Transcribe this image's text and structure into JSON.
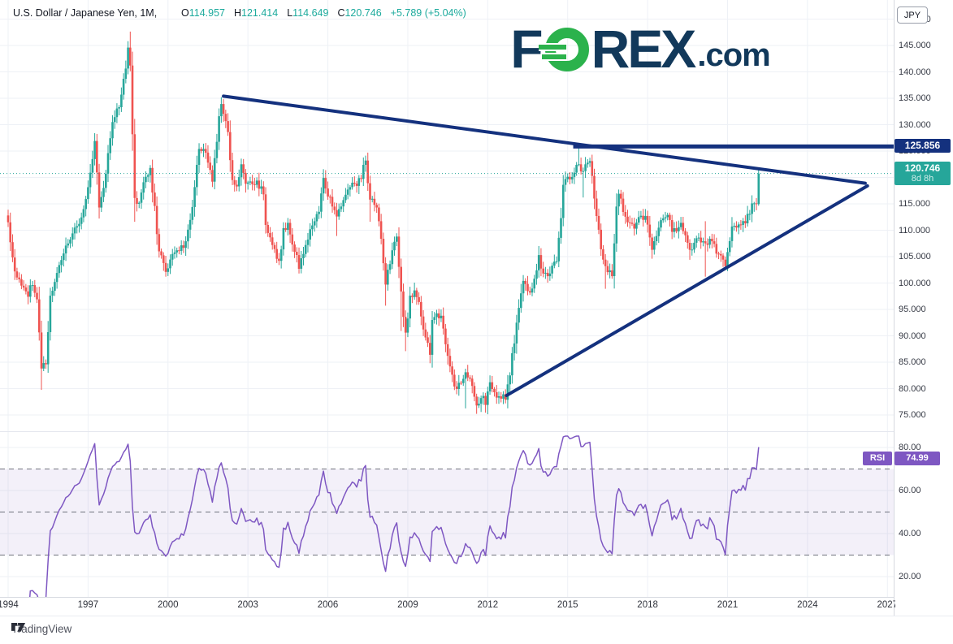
{
  "header": {
    "title": "U.S. Dollar / Japanese Yen, 1M,",
    "ohlc": [
      {
        "label": "O",
        "value": "114.957"
      },
      {
        "label": "H",
        "value": "121.414"
      },
      {
        "label": "L",
        "value": "114.649"
      },
      {
        "label": "C",
        "value": "120.746"
      }
    ],
    "change": "+5.789 (+5.04%)"
  },
  "watermark": {
    "part1": "F",
    "part2": "REX",
    "part3": ".com"
  },
  "axes": {
    "currency_button": "JPY",
    "price_ticks": [
      150,
      145,
      140,
      135,
      130,
      125,
      120,
      115,
      110,
      105,
      100,
      95,
      90,
      85,
      80,
      75
    ],
    "rsi_ticks": [
      80,
      60,
      40,
      20
    ],
    "time_ticks": [
      1994,
      1997,
      2000,
      2003,
      2006,
      2009,
      2012,
      2015,
      2018,
      2021,
      2024,
      2027
    ]
  },
  "price_labels": {
    "resistance": {
      "text": "125.856"
    },
    "last": {
      "text": "120.746",
      "countdown": "8d 8h"
    }
  },
  "rsi_indicator": {
    "label": "RSI",
    "value": "74.99"
  },
  "footer": {
    "tradingview": "TradingView"
  },
  "colors": {
    "up": "#26a69a",
    "down": "#ef5350",
    "trendline": "#14317e",
    "price_line": "#26a69a",
    "resistance_badge": "#14317e",
    "last_price_badge": "#26a69a",
    "rsi_line": "#7e57c2",
    "rsi_badge": "#7e57c2",
    "rsi_band_fill": "rgba(126,87,194,0.09)",
    "rsi_band_edge": "#70737e",
    "grid": "#eef1f6",
    "axis_text": "#363a45",
    "legend_value": "#1caa9d"
  },
  "chart_data": {
    "type": "candlestick+rsi",
    "symbol": "USD/JPY",
    "timeframe": "1M",
    "x_start": {
      "year": 1994,
      "month": 1
    },
    "months_total": 339,
    "price_axis": {
      "min": 75,
      "max": 150,
      "step": 5
    },
    "rsi_axis": {
      "min": 20,
      "max": 80,
      "band_levels": [
        70,
        50,
        30
      ],
      "period": 14,
      "last_value": 74.99
    },
    "last_candle": {
      "o": 114.957,
      "h": 121.414,
      "l": 114.649,
      "c": 120.746
    },
    "monthly_close_anchors_mchl": [
      [
        0,
        111.5
      ],
      [
        3,
        102.2
      ],
      [
        6,
        99.5
      ],
      [
        9,
        97.4
      ],
      [
        11,
        99.6
      ],
      [
        13,
        96.9
      ],
      [
        15,
        83.8,
        null,
        79.75
      ],
      [
        17,
        84.6
      ],
      [
        19,
        97.6
      ],
      [
        22,
        101.9
      ],
      [
        23,
        103.4
      ],
      [
        26,
        107.1
      ],
      [
        29,
        109.4
      ],
      [
        32,
        111.2
      ],
      [
        35,
        115.9
      ],
      [
        37,
        120.9
      ],
      [
        39,
        126.9
      ],
      [
        41,
        114.3
      ],
      [
        44,
        120.7
      ],
      [
        47,
        130.5
      ],
      [
        50,
        133.3
      ],
      [
        52,
        138.7
      ],
      [
        54,
        144.6
      ],
      [
        55,
        141.2,
        147.63
      ],
      [
        57,
        116.1,
        null,
        111.6
      ],
      [
        59,
        115.2
      ],
      [
        61,
        119.1
      ],
      [
        64,
        121.8
      ],
      [
        66,
        114.6
      ],
      [
        68,
        106.0
      ],
      [
        71,
        102.1,
        null,
        101.2
      ],
      [
        74,
        105.5
      ],
      [
        77,
        106.1
      ],
      [
        80,
        107.9
      ],
      [
        83,
        114.4
      ],
      [
        86,
        125.4
      ],
      [
        89,
        124.7
      ],
      [
        92,
        119.2
      ],
      [
        95,
        131.6
      ],
      [
        96,
        133.9,
        135.2
      ],
      [
        99,
        128.6
      ],
      [
        101,
        119.5
      ],
      [
        103,
        118.3
      ],
      [
        105,
        122.5
      ],
      [
        107,
        118.8
      ],
      [
        110,
        118.7
      ],
      [
        112,
        119.4
      ],
      [
        115,
        116.8
      ],
      [
        116,
        111.0
      ],
      [
        119,
        107.2
      ],
      [
        122,
        104.2,
        null,
        103.4
      ],
      [
        124,
        110.4
      ],
      [
        126,
        111.4
      ],
      [
        129,
        105.9
      ],
      [
        131,
        102.7,
        null,
        101.8
      ],
      [
        134,
        107.2
      ],
      [
        137,
        110.9
      ],
      [
        140,
        113.5
      ],
      [
        142,
        119.9
      ],
      [
        143,
        117.9
      ],
      [
        147,
        113.8
      ],
      [
        148,
        112.6,
        null,
        108.9
      ],
      [
        150,
        114.5
      ],
      [
        153,
        117.7
      ],
      [
        155,
        119.0
      ],
      [
        157,
        118.4
      ],
      [
        161,
        123.2,
        124.14
      ],
      [
        163,
        115.8,
        null,
        111.6
      ],
      [
        165,
        114.8
      ],
      [
        167,
        111.7
      ],
      [
        170,
        99.7,
        null,
        95.7
      ],
      [
        173,
        106.2
      ],
      [
        175,
        108.8
      ],
      [
        177,
        98.4,
        null,
        90.9
      ],
      [
        179,
        90.6,
        null,
        87.1
      ],
      [
        181,
        97.6
      ],
      [
        183,
        98.6
      ],
      [
        185,
        96.4
      ],
      [
        188,
        89.7
      ],
      [
        190,
        86.4,
        null,
        84.8
      ],
      [
        191,
        93.0
      ],
      [
        195,
        93.8,
        94.99
      ],
      [
        197,
        88.4
      ],
      [
        199,
        84.2
      ],
      [
        201,
        80.4
      ],
      [
        203,
        81.1
      ],
      [
        206,
        83.1,
        null,
        76.25
      ],
      [
        209,
        80.5
      ],
      [
        211,
        76.8
      ],
      [
        213,
        78.2,
        null,
        75.57
      ],
      [
        215,
        76.9
      ],
      [
        217,
        81.2
      ],
      [
        220,
        78.3
      ],
      [
        222,
        78.1
      ],
      [
        224,
        77.9
      ],
      [
        226,
        82.5
      ],
      [
        227,
        86.7
      ],
      [
        229,
        92.5
      ],
      [
        232,
        100.4
      ],
      [
        235,
        98.2
      ],
      [
        238,
        102.4
      ],
      [
        239,
        105.3
      ],
      [
        241,
        101.8
      ],
      [
        244,
        101.8
      ],
      [
        247,
        104.1
      ],
      [
        249,
        112.3
      ],
      [
        250,
        118.6
      ],
      [
        251,
        119.7
      ],
      [
        254,
        120.1
      ],
      [
        257,
        122.5,
        125.86
      ],
      [
        259,
        121.2,
        null,
        116.2
      ],
      [
        262,
        123.1
      ],
      [
        263,
        120.3
      ],
      [
        265,
        112.7
      ],
      [
        267,
        106.4
      ],
      [
        269,
        103.2,
        null,
        98.9
      ],
      [
        272,
        101.3
      ],
      [
        274,
        114.5
      ],
      [
        275,
        116.9
      ],
      [
        279,
        111.5
      ],
      [
        282,
        110.3
      ],
      [
        284,
        112.5
      ],
      [
        287,
        112.7
      ],
      [
        290,
        106.3,
        null,
        104.6
      ],
      [
        294,
        111.9
      ],
      [
        297,
        112.9
      ],
      [
        299,
        109.7
      ],
      [
        303,
        111.4
      ],
      [
        307,
        106.3,
        null,
        104.4
      ],
      [
        311,
        108.6
      ],
      [
        313,
        107.9
      ],
      [
        314,
        107.5,
        111.7,
        101.2
      ],
      [
        317,
        107.9
      ],
      [
        320,
        105.5
      ],
      [
        323,
        103.2,
        null,
        102.6
      ],
      [
        326,
        110.7
      ],
      [
        329,
        111.1
      ],
      [
        332,
        111.3
      ],
      [
        334,
        113.1
      ],
      [
        335,
        115.1
      ],
      [
        336,
        115.1,
        null,
        113.5
      ],
      [
        337,
        114.96
      ],
      [
        338,
        120.746,
        121.414,
        114.649
      ]
    ],
    "drawings": {
      "descending_trendline": {
        "m1": 97,
        "p1": 135.4,
        "m2": 386,
        "p2": 118.9
      },
      "ascending_trendline": {
        "m1": 224.5,
        "p1": 78.7,
        "m2": 387,
        "p2": 118.4
      },
      "resistance_line": {
        "price": 125.856,
        "m1": 254.5
      },
      "current_price_line": {
        "price": 120.746
      }
    }
  }
}
